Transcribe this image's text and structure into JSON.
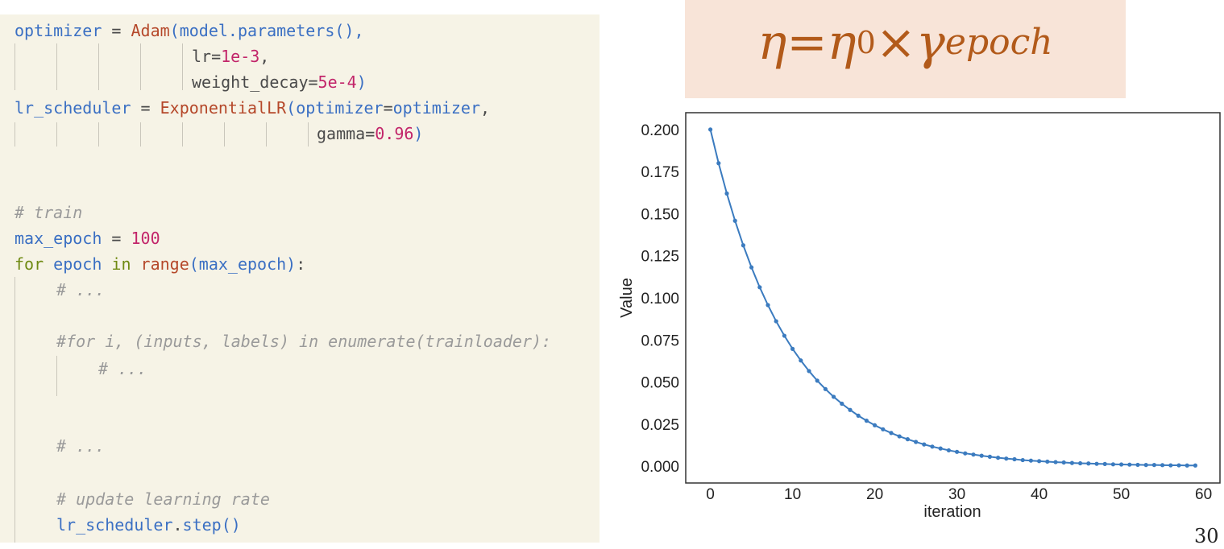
{
  "code": {
    "lines": [
      [
        [
          "var",
          "optimizer"
        ],
        [
          "punc",
          " = "
        ],
        [
          "fn",
          "Adam"
        ],
        [
          "var",
          "(model.parameters(),"
        ]
      ],
      [
        [
          "punc",
          "lr="
        ],
        [
          "num",
          "1e-3"
        ],
        [
          "punc",
          ","
        ]
      ],
      [
        [
          "punc",
          "weight_decay="
        ],
        [
          "num",
          "5e-4"
        ],
        [
          "var",
          ")"
        ]
      ],
      [
        [
          "var",
          "lr_scheduler"
        ],
        [
          "punc",
          " = "
        ],
        [
          "fn",
          "ExponentialLR"
        ],
        [
          "var",
          "(optimizer"
        ],
        [
          "punc",
          "="
        ],
        [
          "var",
          "optimizer"
        ],
        [
          "punc",
          ","
        ]
      ],
      [
        [
          "punc",
          "gamma="
        ],
        [
          "num",
          "0.96"
        ],
        [
          "var",
          ")"
        ]
      ],
      [
        [
          "cm",
          "# train"
        ]
      ],
      [
        [
          "var",
          "max_epoch"
        ],
        [
          "punc",
          " = "
        ],
        [
          "num",
          "100"
        ]
      ],
      [
        [
          "kw",
          "for"
        ],
        [
          "var",
          " epoch "
        ],
        [
          "kw",
          "in"
        ],
        [
          "fn",
          " range"
        ],
        [
          "var",
          "(max_epoch)"
        ],
        [
          "punc",
          ":"
        ]
      ],
      [
        [
          "cm",
          "# ..."
        ]
      ],
      [
        [
          "cm",
          "#for i, (inputs, labels) in enumerate(trainloader):"
        ]
      ],
      [
        [
          "cm",
          "# ..."
        ]
      ],
      [
        [
          "cm",
          "# ..."
        ]
      ],
      [
        [
          "cm",
          "# update learning rate"
        ]
      ],
      [
        [
          "var",
          "lr_scheduler"
        ],
        [
          "punc",
          "."
        ],
        [
          "var",
          "step()"
        ]
      ]
    ]
  },
  "formula": {
    "eta": "η",
    "equals": " = ",
    "eta0": "η",
    "sub0": "0",
    "times": " × ",
    "gamma": "γ",
    "sup": "epoch"
  },
  "colors": {
    "code_bg": "#f6f3e6",
    "formula_bg": "#f8e4d8",
    "formula_text": "#b25a1a",
    "series": "#3b7bbf"
  },
  "chart_data": {
    "type": "line",
    "xlabel": "iteration",
    "ylabel": "Value",
    "xlim": [
      -3,
      62
    ],
    "ylim": [
      -0.01,
      0.21
    ],
    "xticks": [
      "0",
      "10",
      "20",
      "30",
      "40",
      "50",
      "60"
    ],
    "yticks": [
      "0.000",
      "0.025",
      "0.050",
      "0.075",
      "0.100",
      "0.125",
      "0.150",
      "0.175",
      "0.200"
    ],
    "grid": false,
    "series": [
      {
        "x_start": 0,
        "x_end": 59,
        "values": [
          0.2,
          0.18,
          0.162,
          0.1458,
          0.1312,
          0.1181,
          0.1063,
          0.0957,
          0.0861,
          0.0775,
          0.0697,
          0.0628,
          0.0565,
          0.0508,
          0.0458,
          0.0412,
          0.0371,
          0.0334,
          0.03,
          0.027,
          0.0243,
          0.0219,
          0.0197,
          0.0177,
          0.016,
          0.0144,
          0.0129,
          0.0116,
          0.0105,
          0.0094,
          0.0085,
          0.0076,
          0.0069,
          0.0062,
          0.0056,
          0.005,
          0.0045,
          0.0041,
          0.0036,
          0.0033,
          0.003,
          0.0027,
          0.0024,
          0.0022,
          0.0019,
          0.0017,
          0.0016,
          0.0014,
          0.0013,
          0.0011,
          0.001,
          0.0009,
          0.0008,
          0.0007,
          0.0007,
          0.0006,
          0.0005,
          0.0005,
          0.0004,
          0.0004
        ]
      }
    ]
  },
  "slide_number": "30"
}
